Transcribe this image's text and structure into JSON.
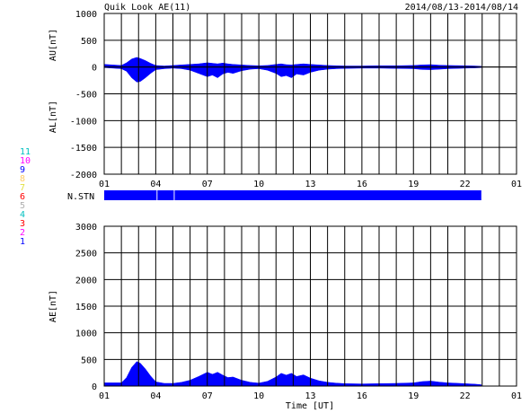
{
  "header": {
    "title": "Quik Look AE(11)",
    "date_range": "2014/08/13-2014/08/14"
  },
  "colors": {
    "fill": "#0000ff",
    "grid": "#000000",
    "stn_bar": "#0000ff",
    "stn_labels": [
      "#0000ff",
      "#ff00ff",
      "#ff0000",
      "#00c0c0",
      "#b0b0b0",
      "#ff0000",
      "#e0e040",
      "#ffcc66",
      "#0000ff",
      "#ff00ff",
      "#00c0c0"
    ]
  },
  "station_labels": [
    "1",
    "2",
    "3",
    "4",
    "5",
    "6",
    "7",
    "8",
    "9",
    "10",
    "11"
  ],
  "nstn_label": "N.STN",
  "chart_data": [
    {
      "type": "area",
      "name": "AU/AL",
      "ylabel_upper": "AU[nT]",
      "ylabel_lower": "AL[nT]",
      "ylim": [
        -2000,
        1000
      ],
      "yticks": [
        1000,
        500,
        0,
        -500,
        -1000,
        -1500,
        -2000
      ],
      "xlim": [
        1,
        25
      ],
      "xtick_labels": [
        "01",
        "04",
        "07",
        "10",
        "13",
        "16",
        "19",
        "22",
        "01"
      ],
      "grid": true,
      "au": {
        "x": [
          1.0,
          1.5,
          2.0,
          2.3,
          2.6,
          2.9,
          3.1,
          3.4,
          3.7,
          4.0,
          4.5,
          5.0,
          5.5,
          6.0,
          6.5,
          7.0,
          7.3,
          7.6,
          7.9,
          8.2,
          8.5,
          9.0,
          9.5,
          10.0,
          10.5,
          11.0,
          11.3,
          11.6,
          11.9,
          12.2,
          12.6,
          13.0,
          13.5,
          14.0,
          14.5,
          15.0,
          16.0,
          17.0,
          18.0,
          19.0,
          19.5,
          20.0,
          20.5,
          21.0,
          22.0,
          22.6,
          22.95
        ],
        "y": [
          50,
          40,
          30,
          80,
          150,
          180,
          160,
          120,
          70,
          30,
          20,
          30,
          40,
          50,
          60,
          80,
          70,
          60,
          75,
          60,
          50,
          40,
          30,
          25,
          30,
          50,
          60,
          45,
          40,
          50,
          60,
          50,
          40,
          30,
          25,
          20,
          20,
          25,
          25,
          30,
          40,
          45,
          35,
          30,
          25,
          20,
          15
        ]
      },
      "al": {
        "x": [
          1.0,
          1.5,
          2.0,
          2.3,
          2.6,
          2.9,
          3.1,
          3.4,
          3.7,
          4.0,
          4.5,
          5.0,
          5.5,
          6.0,
          6.5,
          7.0,
          7.3,
          7.6,
          7.9,
          8.2,
          8.5,
          9.0,
          9.5,
          10.0,
          10.5,
          11.0,
          11.3,
          11.6,
          11.9,
          12.2,
          12.6,
          13.0,
          13.5,
          14.0,
          14.5,
          15.0,
          16.0,
          17.0,
          18.0,
          19.0,
          19.5,
          20.0,
          20.5,
          21.0,
          22.0,
          22.6,
          22.95
        ],
        "y": [
          -10,
          -20,
          -30,
          -80,
          -200,
          -280,
          -270,
          -200,
          -120,
          -50,
          -30,
          -20,
          -30,
          -60,
          -120,
          -180,
          -150,
          -200,
          -130,
          -100,
          -120,
          -70,
          -40,
          -30,
          -60,
          -120,
          -180,
          -160,
          -200,
          -130,
          -150,
          -100,
          -60,
          -40,
          -30,
          -25,
          -20,
          -20,
          -25,
          -30,
          -45,
          -50,
          -40,
          -30,
          -20,
          -15,
          -10
        ]
      }
    },
    {
      "type": "area",
      "name": "AE",
      "ylabel": "AE[nT]",
      "xlabel": "Time [UT]",
      "ylim": [
        0,
        3000
      ],
      "yticks": [
        3000,
        2500,
        2000,
        1500,
        1000,
        500,
        0
      ],
      "xlim": [
        1,
        25
      ],
      "xtick_labels": [
        "01",
        "04",
        "07",
        "10",
        "13",
        "16",
        "19",
        "22",
        "01"
      ],
      "grid": true,
      "x": [
        1.0,
        1.5,
        2.0,
        2.3,
        2.6,
        2.9,
        3.1,
        3.4,
        3.7,
        4.0,
        4.5,
        5.0,
        5.5,
        6.0,
        6.5,
        7.0,
        7.3,
        7.6,
        7.9,
        8.2,
        8.5,
        9.0,
        9.5,
        10.0,
        10.5,
        11.0,
        11.3,
        11.6,
        11.9,
        12.2,
        12.6,
        13.0,
        13.5,
        14.0,
        14.5,
        15.0,
        16.0,
        17.0,
        18.0,
        19.0,
        19.5,
        20.0,
        20.5,
        21.0,
        22.0,
        22.6,
        22.95
      ],
      "y": [
        60,
        60,
        60,
        160,
        350,
        460,
        430,
        320,
        190,
        80,
        50,
        50,
        70,
        110,
        180,
        260,
        220,
        260,
        205,
        160,
        170,
        110,
        70,
        55,
        90,
        170,
        240,
        205,
        240,
        180,
        210,
        150,
        100,
        70,
        55,
        45,
        40,
        45,
        50,
        60,
        85,
        95,
        75,
        60,
        45,
        35,
        25
      ]
    }
  ],
  "nstn": {
    "xlim": [
      1,
      25
    ],
    "segments": [
      [
        1.0,
        4.05
      ],
      [
        4.1,
        5.05
      ],
      [
        5.1,
        22.95
      ]
    ]
  }
}
